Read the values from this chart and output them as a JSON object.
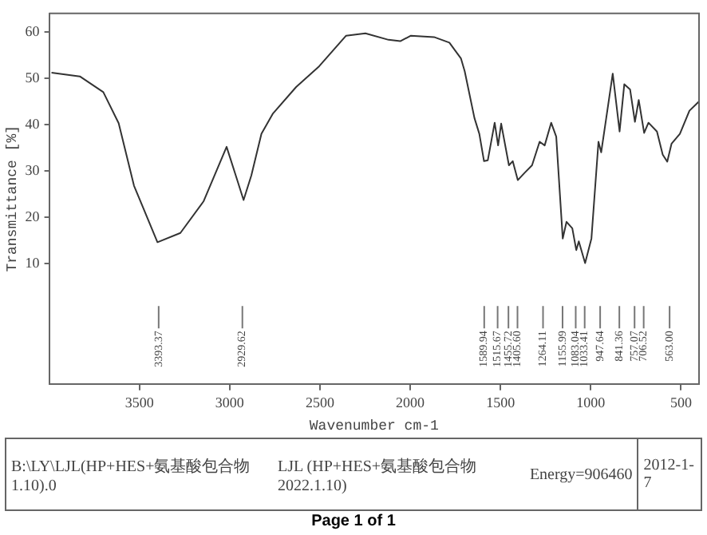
{
  "chart_data": {
    "type": "line",
    "xlabel": "Wavenumber cm-1",
    "ylabel": "Transmittance [%]",
    "x": [
      3987,
      3830,
      3700,
      3615,
      3530,
      3400,
      3273,
      3145,
      3017,
      2962,
      2923,
      2880,
      2824,
      2760,
      2632,
      2504,
      2355,
      2248,
      2120,
      2055,
      1996,
      1868,
      1783,
      1719,
      1698,
      1644,
      1617,
      1591,
      1570,
      1532,
      1513,
      1496,
      1453,
      1432,
      1404,
      1368,
      1325,
      1283,
      1255,
      1219,
      1191,
      1155,
      1134,
      1102,
      1080,
      1066,
      1031,
      996,
      957,
      942,
      914,
      878,
      840,
      814,
      782,
      755,
      734,
      704,
      680,
      633,
      601,
      576,
      552,
      506,
      453,
      400
    ],
    "series": [
      {
        "color": "#333333",
        "values": [
          51.2,
          50.4,
          47,
          40.3,
          26.8,
          14.6,
          16.6,
          23.4,
          35.2,
          28.5,
          23.7,
          29,
          38,
          42.4,
          48.1,
          52.6,
          59.2,
          59.7,
          58.3,
          58,
          59.2,
          58.9,
          57.7,
          54.3,
          51.5,
          41.4,
          38,
          32.1,
          32.3,
          40.4,
          35.5,
          40.2,
          31.2,
          32.1,
          28,
          29.5,
          31.2,
          36.3,
          35.5,
          40.4,
          37.4,
          15.4,
          19,
          17.6,
          12.9,
          14.8,
          10.1,
          15.4,
          36.3,
          34,
          41.4,
          51,
          38.5,
          48.7,
          47.6,
          40.6,
          45.3,
          38.2,
          40.4,
          38.5,
          33.5,
          32,
          35.9,
          38,
          43,
          45
        ]
      }
    ],
    "xlim": [
      4000,
      400
    ],
    "xticks": [
      3500,
      3000,
      2500,
      2000,
      1500,
      1000,
      500
    ],
    "ylim": [
      -16,
      64
    ],
    "yticks": [
      10,
      20,
      30,
      40,
      50,
      60
    ],
    "grid": false,
    "legend": false,
    "ref_lines": [
      {
        "axis": "x",
        "value": 3393.37,
        "label": "3393.37"
      },
      {
        "axis": "x",
        "value": 2929.62,
        "label": "2929.62"
      },
      {
        "axis": "x",
        "value": 1589.94,
        "label": "1589.94"
      },
      {
        "axis": "x",
        "value": 1515.67,
        "label": "1515.67"
      },
      {
        "axis": "x",
        "value": 1455.72,
        "label": "1455.72"
      },
      {
        "axis": "x",
        "value": 1405.6,
        "label": "1405.60"
      },
      {
        "axis": "x",
        "value": 1264.11,
        "label": "1264.11"
      },
      {
        "axis": "x",
        "value": 1155.99,
        "label": "1155.99"
      },
      {
        "axis": "x",
        "value": 1083.04,
        "label": "1083.04"
      },
      {
        "axis": "x",
        "value": 1033.41,
        "label": "1033.41"
      },
      {
        "axis": "x",
        "value": 947.64,
        "label": "947.64"
      },
      {
        "axis": "x",
        "value": 841.36,
        "label": "841.36"
      },
      {
        "axis": "x",
        "value": 757.07,
        "label": "757.07"
      },
      {
        "axis": "x",
        "value": 706.52,
        "label": "706.52"
      },
      {
        "axis": "x",
        "value": 563,
        "label": "563.00"
      }
    ],
    "annotations": [
      "B:\\LY\\LJL(HP+HES+氨基酸包合物 1.10).0",
      "LJL (HP+HES+氨基酸包合物 2022.1.10)",
      "Energy=906460",
      "2012-1-7",
      "Page 1 of 1"
    ]
  }
}
